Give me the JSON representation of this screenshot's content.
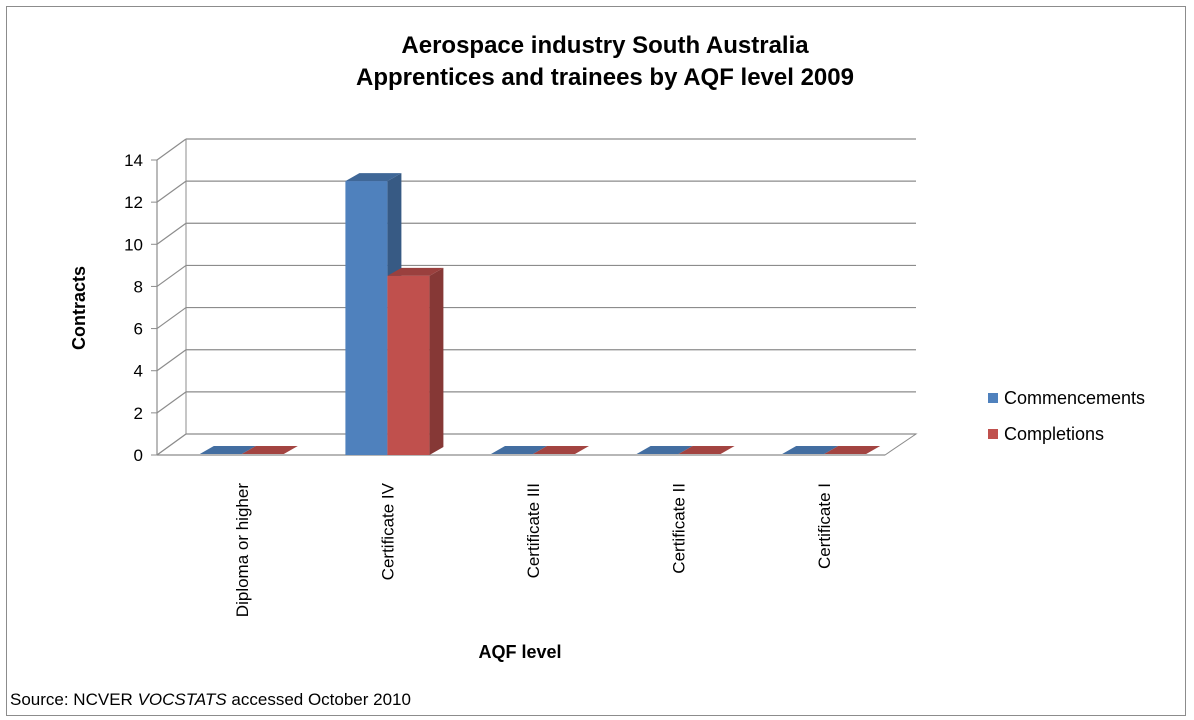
{
  "title_line1": "Aerospace industry South Australia",
  "title_line2": "Apprentices and trainees by AQF level 2009",
  "source": {
    "prefix": "Source: NCVER",
    "publication": "VOCSTATS",
    "suffix": "accessed October 2010"
  },
  "colors": {
    "commencements": "#4f81bd",
    "completions": "#c0504d"
  },
  "chart_data": {
    "type": "bar",
    "title": "Aerospace industry South Australia\nApprentices and trainees by AQF level 2009",
    "xlabel": "AQF level",
    "ylabel": "Contracts",
    "categories": [
      "Diploma or higher",
      "Certificate IV",
      "Certificate III",
      "Certificate II",
      "Certificate I"
    ],
    "series": [
      {
        "name": "Commencements",
        "values": [
          0,
          13,
          0,
          0,
          0
        ]
      },
      {
        "name": "Completions",
        "values": [
          0,
          8.5,
          0,
          0,
          0
        ]
      }
    ],
    "ylim": [
      0,
      14
    ],
    "yticks": [
      0,
      2,
      4,
      6,
      8,
      10,
      12,
      14
    ],
    "grid": true,
    "legend": "right",
    "style": "3d-clustered"
  }
}
